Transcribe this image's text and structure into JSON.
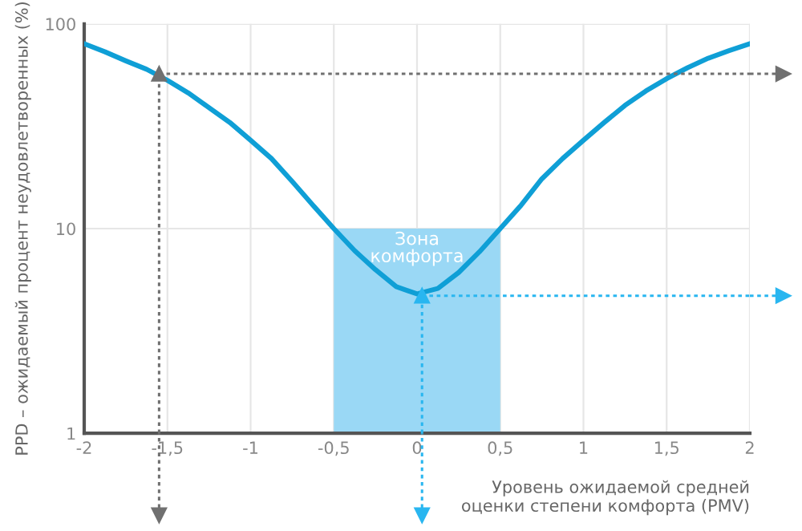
{
  "chart_data": {
    "type": "line",
    "xlabel": "Уровень ожидаемой средней\nоценки степени комфорта (PMV)",
    "ylabel": "PPD – ожидаемый процент неудовлетворенных (%)",
    "x": [
      -2,
      -1.875,
      -1.75,
      -1.625,
      -1.5,
      -1.375,
      -1.25,
      -1.125,
      -1,
      -0.875,
      -0.75,
      -0.625,
      -0.5,
      -0.375,
      -0.25,
      -0.125,
      0,
      0.125,
      0.25,
      0.375,
      0.5,
      0.625,
      0.75,
      0.875,
      1,
      1.125,
      1.25,
      1.375,
      1.5,
      1.625,
      1.75,
      1.875,
      2
    ],
    "series": [
      {
        "type": "area",
        "color": "#9ad8f5",
        "x": [
          -0.5,
          0.5
        ],
        "values": [
          10,
          10
        ]
      },
      {
        "color": "#0f9fd6",
        "values": [
          80,
          73,
          66,
          60,
          53,
          46,
          39,
          33,
          27,
          22,
          17,
          13,
          10,
          7.8,
          6.3,
          5.2,
          4.8,
          5.1,
          6.1,
          7.7,
          10,
          13,
          17.5,
          22,
          27,
          33,
          40,
          47,
          54,
          61,
          68,
          74,
          80
        ]
      }
    ],
    "annotations": [
      "Зона\nкомфорта"
    ],
    "ref_lines": [
      {
        "axis": "y",
        "value": 57,
        "color": "#707070",
        "line_style": "dotted"
      },
      {
        "axis": "x",
        "value": -1.55,
        "color": "#707070",
        "line_style": "dotted"
      },
      {
        "axis": "y",
        "value": 4.7,
        "color": "#29b6f0",
        "line_style": "dotted"
      },
      {
        "axis": "x",
        "value": 0.03,
        "color": "#29b6f0",
        "line_style": "dotted"
      }
    ],
    "log": "y",
    "xlim": [
      -2,
      2
    ],
    "ylim": [
      1,
      100
    ],
    "xticks": [
      -2,
      {
        "value": -1.5,
        "label": "-1,5"
      },
      -1,
      {
        "value": -0.5,
        "label": "-0,5"
      },
      0,
      {
        "value": 0.5,
        "label": "0,5"
      },
      1,
      {
        "value": 1.5,
        "label": "1,5"
      },
      2
    ],
    "yticks": [
      1,
      10,
      100
    ],
    "grid": true
  }
}
